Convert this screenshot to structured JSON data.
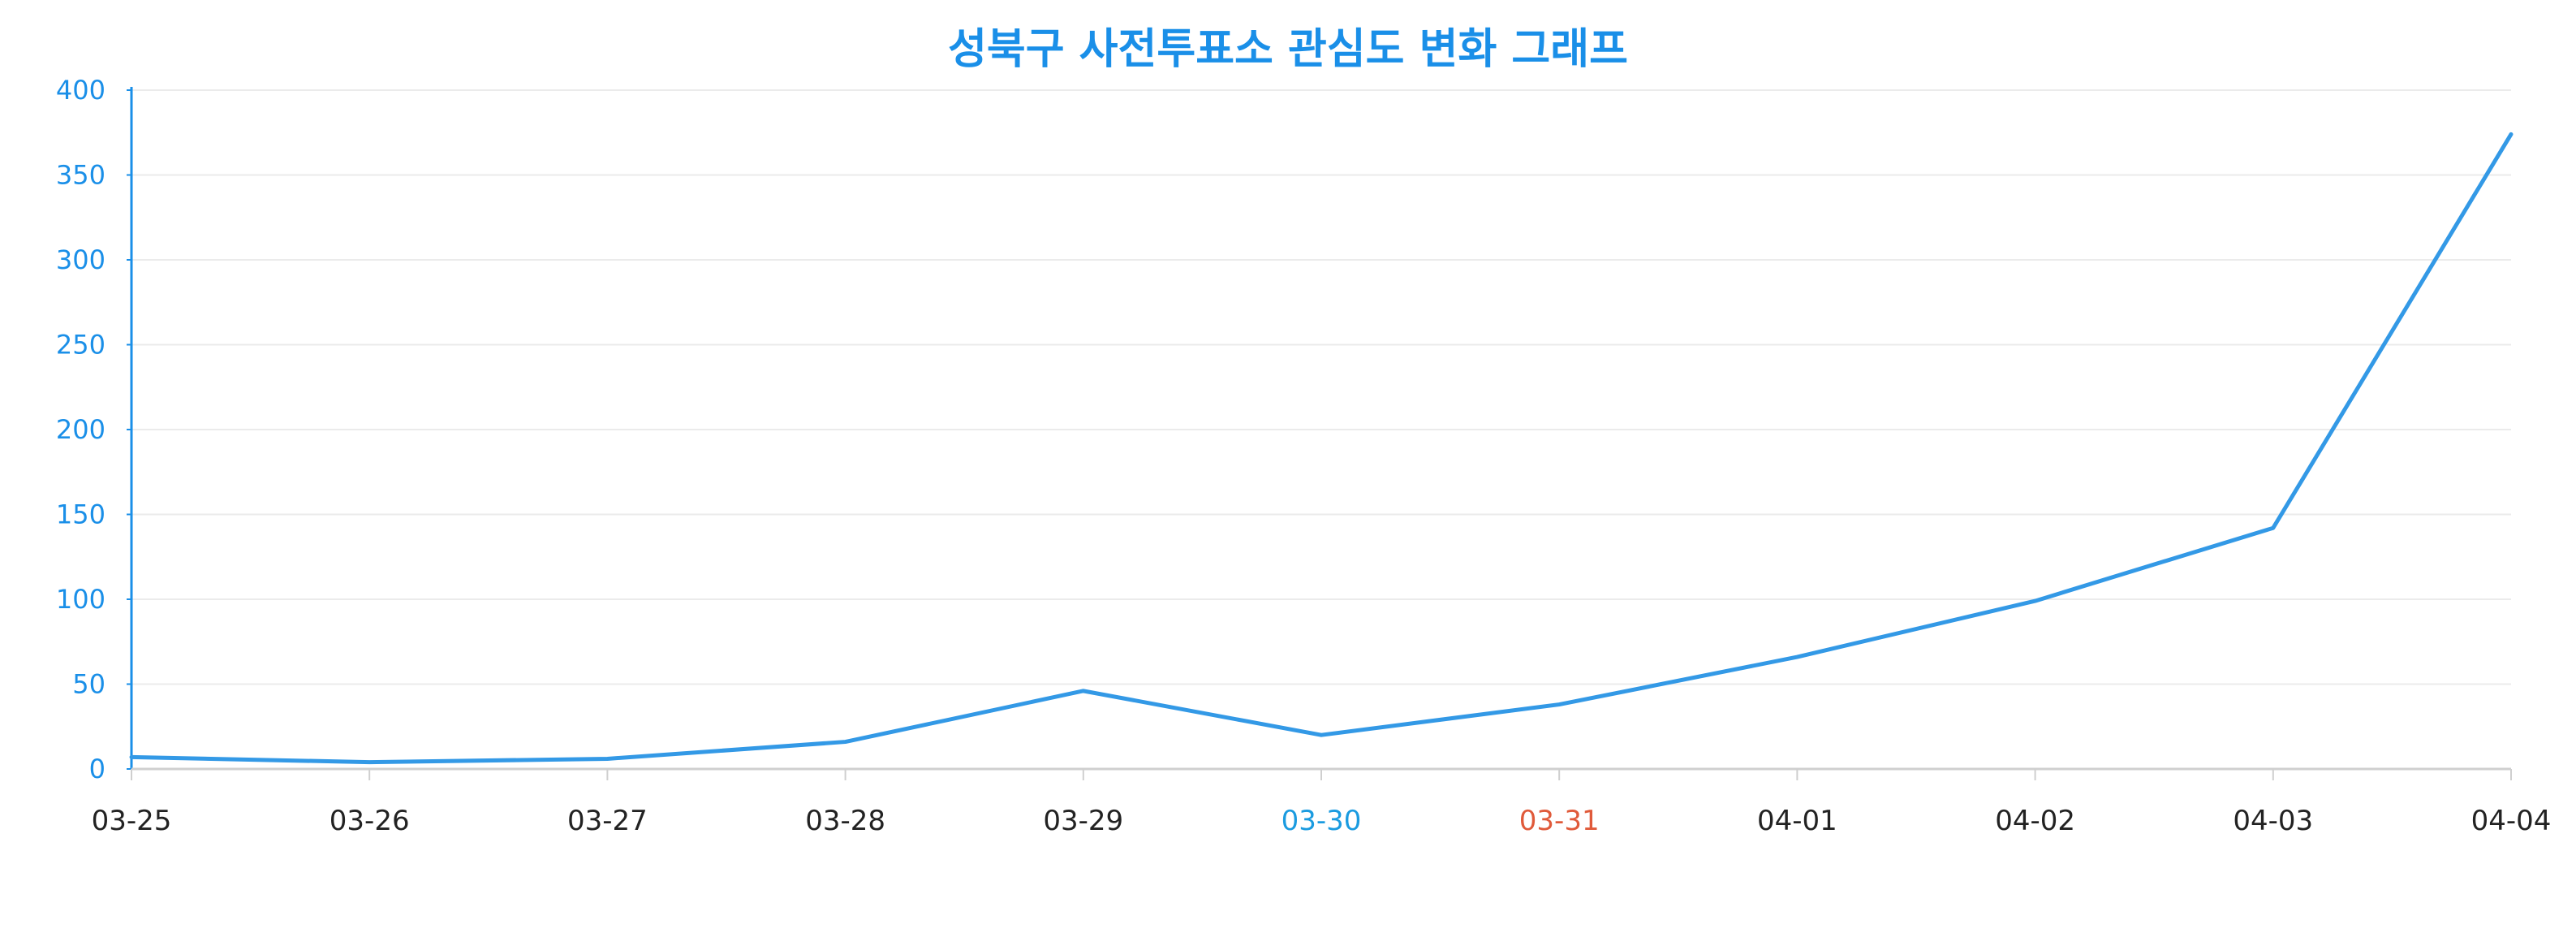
{
  "chart_data": {
    "type": "line",
    "title": "성북구 사전투표소 관심도 변화 그래프",
    "xlabel": "",
    "ylabel": "",
    "categories": [
      "03-25",
      "03-26",
      "03-27",
      "03-28",
      "03-29",
      "03-30",
      "03-31",
      "04-01",
      "04-02",
      "04-03",
      "04-04"
    ],
    "series": [
      {
        "values": [
          7,
          4,
          6,
          16,
          46,
          20,
          38,
          66,
          99,
          142,
          374
        ],
        "color": "#3399e6"
      }
    ],
    "ylim": [
      0,
      400
    ],
    "yticks": [
      0,
      50,
      100,
      150,
      200,
      250,
      300,
      350,
      400
    ],
    "grid": true,
    "legend": "none"
  },
  "colors": {
    "title": "#1a8fe8",
    "y_axis": "#1a8fe8",
    "y_tick_text": "#1a8fe8",
    "x_tick_text": "#222222",
    "x_tick_highlight_blue": "#1a9be0",
    "x_tick_highlight_red": "#e05a3a",
    "grid": "#ebebeb",
    "x_axis": "#cfcfcf"
  },
  "highlighted_ticks": {
    "03-30": "blue",
    "03-31": "red"
  }
}
